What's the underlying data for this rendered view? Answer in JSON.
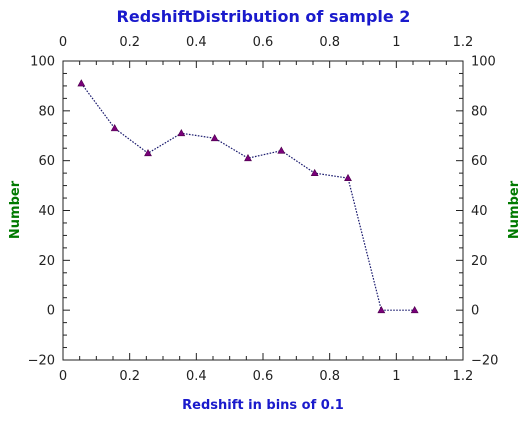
{
  "chart_data": {
    "type": "line",
    "title": "RedshiftDistribution of sample 2",
    "xlabel": "Redshift in bins of 0.1",
    "ylabel": "Number",
    "xlim": [
      0,
      1.2
    ],
    "ylim": [
      -20,
      100
    ],
    "x_ticks": [
      0,
      0.2,
      0.4,
      0.6,
      0.8,
      1,
      1.2
    ],
    "x_tick_labels": [
      "0",
      "0.2",
      "0.4",
      "0.6",
      "0.8",
      "1",
      "1.2"
    ],
    "y_ticks": [
      -20,
      0,
      20,
      40,
      60,
      80,
      100
    ],
    "y_tick_labels": [
      "−20",
      "0",
      "20",
      "40",
      "60",
      "80",
      "100"
    ],
    "grid": false,
    "secondary_axes": true,
    "series": [
      {
        "x": [
          0.055,
          0.155,
          0.255,
          0.355,
          0.455,
          0.555,
          0.655,
          0.755,
          0.855,
          0.955,
          1.055
        ],
        "y": [
          91,
          73,
          63,
          71,
          69,
          61,
          64,
          55,
          53,
          0,
          0
        ],
        "line_style": "dotted",
        "line_color": "#1a1a6e",
        "marker": "triangle",
        "marker_color": "#7a007a"
      }
    ],
    "colors": {
      "title": "#1a1acc",
      "xlabel": "#1a1acc",
      "ylabel": "#007a00",
      "axis": "#222222"
    }
  }
}
